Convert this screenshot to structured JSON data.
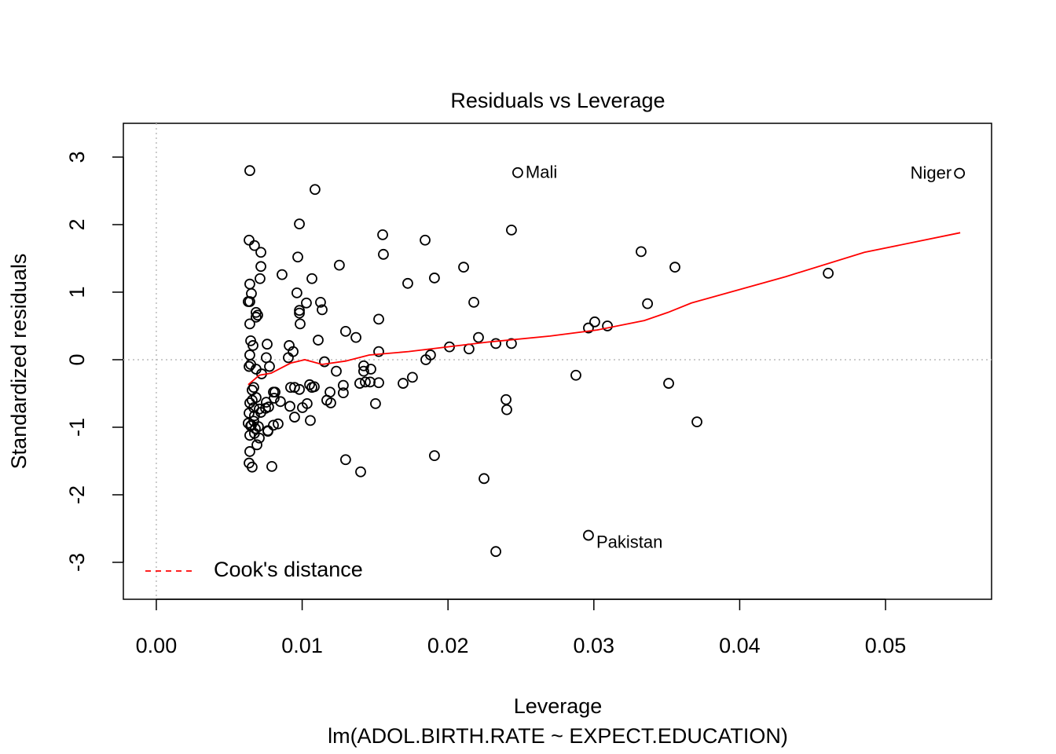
{
  "chart_data": {
    "type": "scatter",
    "title": "Residuals vs Leverage",
    "xlabel": "Leverage",
    "subtitle": "lm(ADOL.BIRTH.RATE ~ EXPECT.EDUCATION)",
    "ylabel": "Standardized residuals",
    "xlim": [
      -0.00226,
      0.05727
    ],
    "ylim": [
      -3.547,
      3.5
    ],
    "xticks": [
      {
        "value": 0,
        "label": "0.00"
      },
      0.01,
      0.02,
      0.03,
      0.04,
      0.05
    ],
    "yticks": [
      -3,
      -2,
      -1,
      0,
      1,
      2,
      3
    ],
    "hlines": [
      0
    ],
    "vlines": [
      0
    ],
    "points": {
      "color": "#000000",
      "x": [
        0.00641,
        0.01088,
        0.00981,
        0.00636,
        0.00673,
        0.00717,
        0.01552,
        0.01843,
        0.02435,
        0.0097,
        0.01557,
        0.01255,
        0.00862,
        0.00717,
        0.00711,
        0.01067,
        0.01724,
        0.01907,
        0.02107,
        0.03324,
        0.03556,
        0.04607,
        0.00641,
        0.00652,
        0.00964,
        0.01029,
        0.00641,
        0.0063,
        0.00684,
        0.00695,
        0.00684,
        0.00981,
        0.00981,
        0.01137,
        0.01126,
        0.02177,
        0.03368,
        0.00986,
        0.01525,
        0.03006,
        0.02963,
        0.03093,
        0.00641,
        0.01298,
        0.01369,
        0.0111,
        0.02209,
        0.02328,
        0.02435,
        0.0201,
        0.02144,
        0.00911,
        0.00938,
        0.0076,
        0.00647,
        0.00663,
        0.00641,
        0.00754,
        0.01525,
        0.0188,
        0.01848,
        0.00905,
        0.00647,
        0.00636,
        0.01153,
        0.00776,
        0.00684,
        0.00722,
        0.01234,
        0.01422,
        0.01471,
        0.01422,
        0.01433,
        0.01466,
        0.01395,
        0.01525,
        0.01692,
        0.01756,
        0.02877,
        0.03513,
        0.00668,
        0.00657,
        0.00803,
        0.00814,
        0.00921,
        0.00948,
        0.00981,
        0.01051,
        0.01067,
        0.01083,
        0.01282,
        0.01282,
        0.01191,
        0.01169,
        0.01196,
        0.01034,
        0.00808,
        0.00851,
        0.00754,
        0.0077,
        0.00749,
        0.00706,
        0.00657,
        0.00641,
        0.00668,
        0.00636,
        0.00916,
        0.01002,
        0.01503,
        0.02398,
        0.02403,
        0.00673,
        0.00717,
        0.00948,
        0.01056,
        0.0063,
        0.00652,
        0.00679,
        0.007,
        0.00673,
        0.00641,
        0.00765,
        0.00803,
        0.00835,
        0.00706,
        0.0069,
        0.03707,
        0.00641,
        0.00636,
        0.00657,
        0.00792,
        0.01298,
        0.01401,
        0.01907,
        0.02247,
        0.02328,
        0.00647,
        0.00668,
        0.00684,
        0.00765
      ],
      "y": [
        2.8,
        2.52,
        2.01,
        1.77,
        1.69,
        1.59,
        1.85,
        1.77,
        1.92,
        1.52,
        1.56,
        1.4,
        1.26,
        1.38,
        1.2,
        1.2,
        1.13,
        1.21,
        1.37,
        1.6,
        1.37,
        1.28,
        1.12,
        0.98,
        0.99,
        0.84,
        0.86,
        0.86,
        0.7,
        0.66,
        0.63,
        0.73,
        0.69,
        0.74,
        0.85,
        0.85,
        0.83,
        0.53,
        0.6,
        0.56,
        0.47,
        0.5,
        0.53,
        0.42,
        0.33,
        0.29,
        0.33,
        0.24,
        0.24,
        0.19,
        0.16,
        0.21,
        0.12,
        0.23,
        0.28,
        0.21,
        0.07,
        0.03,
        0.12,
        0.07,
        0,
        0.03,
        -0.07,
        -0.1,
        -0.03,
        -0.1,
        -0.14,
        -0.21,
        -0.17,
        -0.09,
        -0.14,
        -0.17,
        -0.33,
        -0.33,
        -0.35,
        -0.34,
        -0.35,
        -0.26,
        -0.23,
        -0.35,
        -0.41,
        -0.45,
        -0.48,
        -0.48,
        -0.41,
        -0.41,
        -0.44,
        -0.37,
        -0.41,
        -0.4,
        -0.38,
        -0.49,
        -0.48,
        -0.6,
        -0.64,
        -0.65,
        -0.57,
        -0.62,
        -0.63,
        -0.7,
        -0.72,
        -0.73,
        -0.6,
        -0.64,
        -0.71,
        -0.79,
        -0.69,
        -0.71,
        -0.65,
        -0.59,
        -0.74,
        -0.83,
        -0.78,
        -0.85,
        -0.9,
        -0.94,
        -0.97,
        -1.02,
        -0.99,
        -1.09,
        -1.12,
        -1.06,
        -0.97,
        -0.95,
        -1.16,
        -1.26,
        -0.92,
        -1.36,
        -1.53,
        -1.59,
        -1.58,
        -1.48,
        -1.66,
        -1.42,
        -1.76,
        -2.84,
        -0.98,
        -0.91,
        -0.56,
        -1.05
      ]
    },
    "labeled_points": [
      {
        "label": "Mali",
        "x": 0.02478,
        "y": 2.77
      },
      {
        "label": "Niger",
        "x": 0.05507,
        "y": 2.76
      },
      {
        "label": "Pakistan",
        "x": 0.02963,
        "y": -2.6
      }
    ],
    "smooth": {
      "color": "#ff0000",
      "x": [
        0.0063,
        0.00706,
        0.00787,
        0.00921,
        0.01018,
        0.01137,
        0.01298,
        0.0146,
        0.0173,
        0.01999,
        0.02268,
        0.02699,
        0.03023,
        0.03346,
        0.03508,
        0.03669,
        0.04316,
        0.04855,
        0.05512
      ],
      "y": [
        -0.37,
        -0.23,
        -0.2,
        -0.05,
        0,
        -0.07,
        -0.02,
        0.07,
        0.12,
        0.19,
        0.26,
        0.35,
        0.44,
        0.58,
        0.7,
        0.84,
        1.23,
        1.59,
        1.88
      ]
    },
    "legend": {
      "position": "bottomleft",
      "entries": [
        {
          "name": "Cook's distance",
          "color": "#ff0000",
          "dashed": true
        }
      ]
    }
  }
}
